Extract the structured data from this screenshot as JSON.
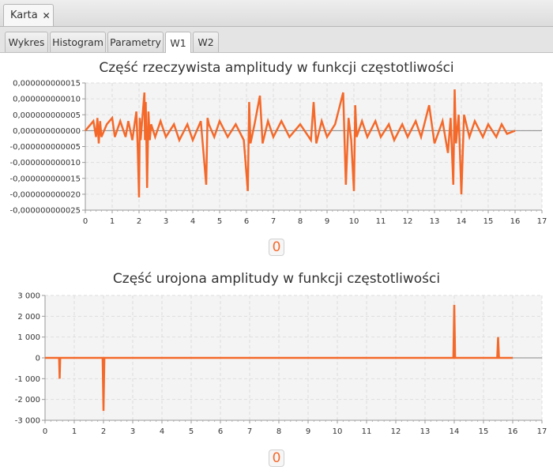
{
  "window": {
    "tab_label": "Karta",
    "close_icon": "close-icon"
  },
  "tabs": [
    {
      "label": "Wykres",
      "active": false
    },
    {
      "label": "Histogram",
      "active": false
    },
    {
      "label": "Parametry",
      "active": false
    },
    {
      "label": "W1",
      "active": true
    },
    {
      "label": "W2",
      "active": false
    }
  ],
  "colors": {
    "series": "#f4692a",
    "plot_bg": "#f4f4f4",
    "grid": "#dddddd",
    "zero_line": "#888888"
  },
  "chart_data": [
    {
      "type": "line",
      "title": "Część rzeczywista amplitudy w funkcji częstotliwości",
      "xlabel": "",
      "ylabel": "",
      "xlim": [
        0,
        17
      ],
      "ylim": [
        -2.5e-12,
        1.5e-12
      ],
      "x_ticks": [
        "0",
        "1",
        "2",
        "3",
        "4",
        "5",
        "6",
        "7",
        "8",
        "9",
        "10",
        "11",
        "12",
        "13",
        "14",
        "15",
        "16",
        "17"
      ],
      "y_ticks": [
        "0,000000000015",
        "0,000000000010",
        "0,000000000005",
        "0,000000000000",
        "-0,000000000005",
        "-0,000000000010",
        "-0,000000000015",
        "-0,000000000020",
        "-0,000000000025"
      ],
      "grid": true,
      "series": [
        {
          "x": [
            0,
            0.3,
            0.4,
            0.45,
            0.5,
            0.55,
            0.6,
            0.8,
            1.0,
            1.1,
            1.3,
            1.5,
            1.6,
            1.75,
            1.9,
            1.95,
            2.0,
            2.03,
            2.06,
            2.2,
            2.22,
            2.25,
            2.3,
            2.35,
            2.4,
            2.45,
            2.6,
            2.8,
            3.0,
            3.3,
            3.5,
            3.8,
            4.0,
            4.3,
            4.5,
            4.55,
            4.6,
            4.8,
            5.0,
            5.3,
            5.6,
            5.9,
            6.05,
            6.1,
            6.15,
            6.3,
            6.5,
            6.6,
            6.8,
            7.0,
            7.3,
            7.6,
            8.0,
            8.4,
            8.5,
            8.6,
            8.8,
            9.0,
            9.3,
            9.6,
            9.7,
            9.8,
            9.9,
            10.0,
            10.05,
            10.1,
            10.3,
            10.5,
            10.8,
            11.0,
            11.3,
            11.5,
            11.8,
            12.0,
            12.3,
            12.5,
            12.8,
            13.0,
            13.3,
            13.5,
            13.6,
            13.7,
            13.75,
            13.8,
            13.9,
            14.0,
            14.1,
            14.3,
            14.5,
            14.8,
            15.0,
            15.3,
            15.5,
            15.7,
            16.0
          ],
          "y": [
            0,
            3e-13,
            -2e-13,
            4e-13,
            -4e-13,
            3e-13,
            -2e-13,
            2e-13,
            4e-13,
            -2e-13,
            3e-13,
            -2e-13,
            3e-13,
            -3e-13,
            6e-13,
            -5e-13,
            -2.1e-12,
            4e-13,
            -3e-13,
            1.2e-12,
            -3e-13,
            9e-13,
            -1.8e-12,
            6e-13,
            -3e-13,
            2e-13,
            -2e-13,
            3e-13,
            -2e-13,
            2e-13,
            -3e-13,
            2e-13,
            -3e-13,
            3e-13,
            -1.7e-12,
            4e-13,
            2e-13,
            -2e-13,
            3e-13,
            -2e-13,
            2e-13,
            -3e-13,
            -1.9e-12,
            9e-13,
            -4e-13,
            2e-13,
            1.1e-12,
            -4e-13,
            3e-13,
            -2e-13,
            3e-13,
            -2e-13,
            2e-13,
            -3e-13,
            9e-13,
            -4e-13,
            3e-13,
            -2e-13,
            2e-13,
            1.2e-12,
            -1.7e-12,
            4e-13,
            -3e-13,
            -1.9e-12,
            8e-13,
            -2e-13,
            3e-13,
            -2e-13,
            3e-13,
            -2e-13,
            2e-13,
            -3e-13,
            2e-13,
            -2e-13,
            3e-13,
            -2e-13,
            8e-13,
            -4e-13,
            3e-13,
            -7e-13,
            4e-13,
            -1.7e-12,
            1.3e-12,
            -4e-13,
            5e-13,
            -2e-12,
            5e-13,
            -2e-13,
            3e-13,
            -2e-13,
            2e-13,
            -2e-13,
            2e-13,
            -1e-13,
            0
          ]
        }
      ]
    },
    {
      "type": "line",
      "title": "Część urojona amplitudy w funkcji częstotliwości",
      "xlabel": "",
      "ylabel": "",
      "xlim": [
        0,
        17
      ],
      "ylim": [
        -3000,
        3000
      ],
      "x_ticks": [
        "0",
        "1",
        "2",
        "3",
        "4",
        "5",
        "6",
        "7",
        "8",
        "9",
        "10",
        "11",
        "12",
        "13",
        "14",
        "15",
        "16",
        "17"
      ],
      "y_ticks": [
        "3 000",
        "2 000",
        "1 000",
        "0",
        "-1 000",
        "-2 000",
        "-3 000"
      ],
      "grid": true,
      "series": [
        {
          "x": [
            0,
            0.48,
            0.5,
            0.52,
            1.97,
            2.0,
            2.03,
            13.97,
            14.0,
            14.03,
            15.47,
            15.5,
            15.53,
            16.0
          ],
          "y": [
            0,
            0,
            -1000,
            0,
            0,
            -2550,
            0,
            0,
            2550,
            0,
            0,
            1000,
            0,
            0
          ]
        }
      ]
    }
  ],
  "counters": [
    {
      "value": "0"
    },
    {
      "value": "0"
    }
  ]
}
